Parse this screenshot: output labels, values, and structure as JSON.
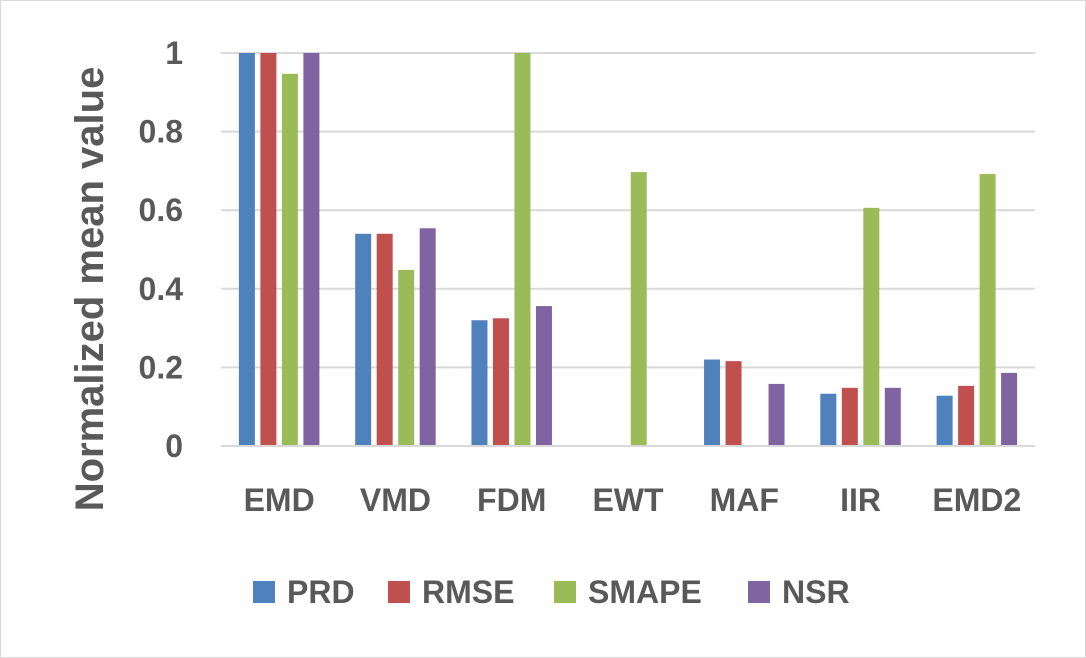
{
  "chart_data": {
    "type": "bar",
    "title": "",
    "xlabel": "",
    "ylabel": "Normalized mean value",
    "ylim": [
      0,
      1
    ],
    "yticks": [
      0,
      0.2,
      0.4,
      0.6,
      0.8,
      1
    ],
    "ytick_labels": [
      "0",
      "0.2",
      "0.4",
      "0.6",
      "0.8",
      "1"
    ],
    "grid": true,
    "legend_position": "bottom",
    "categories": [
      "EMD",
      "VMD",
      "FDM",
      "EWT",
      "MAF",
      "IIR",
      "EMD2"
    ],
    "series": [
      {
        "name": "PRD",
        "color": "#4f81bd",
        "values": [
          1.0,
          0.54,
          0.32,
          0.0,
          0.22,
          0.133,
          0.128
        ]
      },
      {
        "name": "RMSE",
        "color": "#c0504d",
        "values": [
          1.0,
          0.54,
          0.325,
          0.0,
          0.216,
          0.148,
          0.153
        ]
      },
      {
        "name": "SMAPE",
        "color": "#9bbb59",
        "values": [
          0.947,
          0.448,
          1.0,
          0.697,
          0.0,
          0.606,
          0.692
        ]
      },
      {
        "name": "NSR",
        "color": "#8064a2",
        "values": [
          1.0,
          0.554,
          0.356,
          0.0,
          0.158,
          0.148,
          0.186
        ]
      }
    ]
  }
}
